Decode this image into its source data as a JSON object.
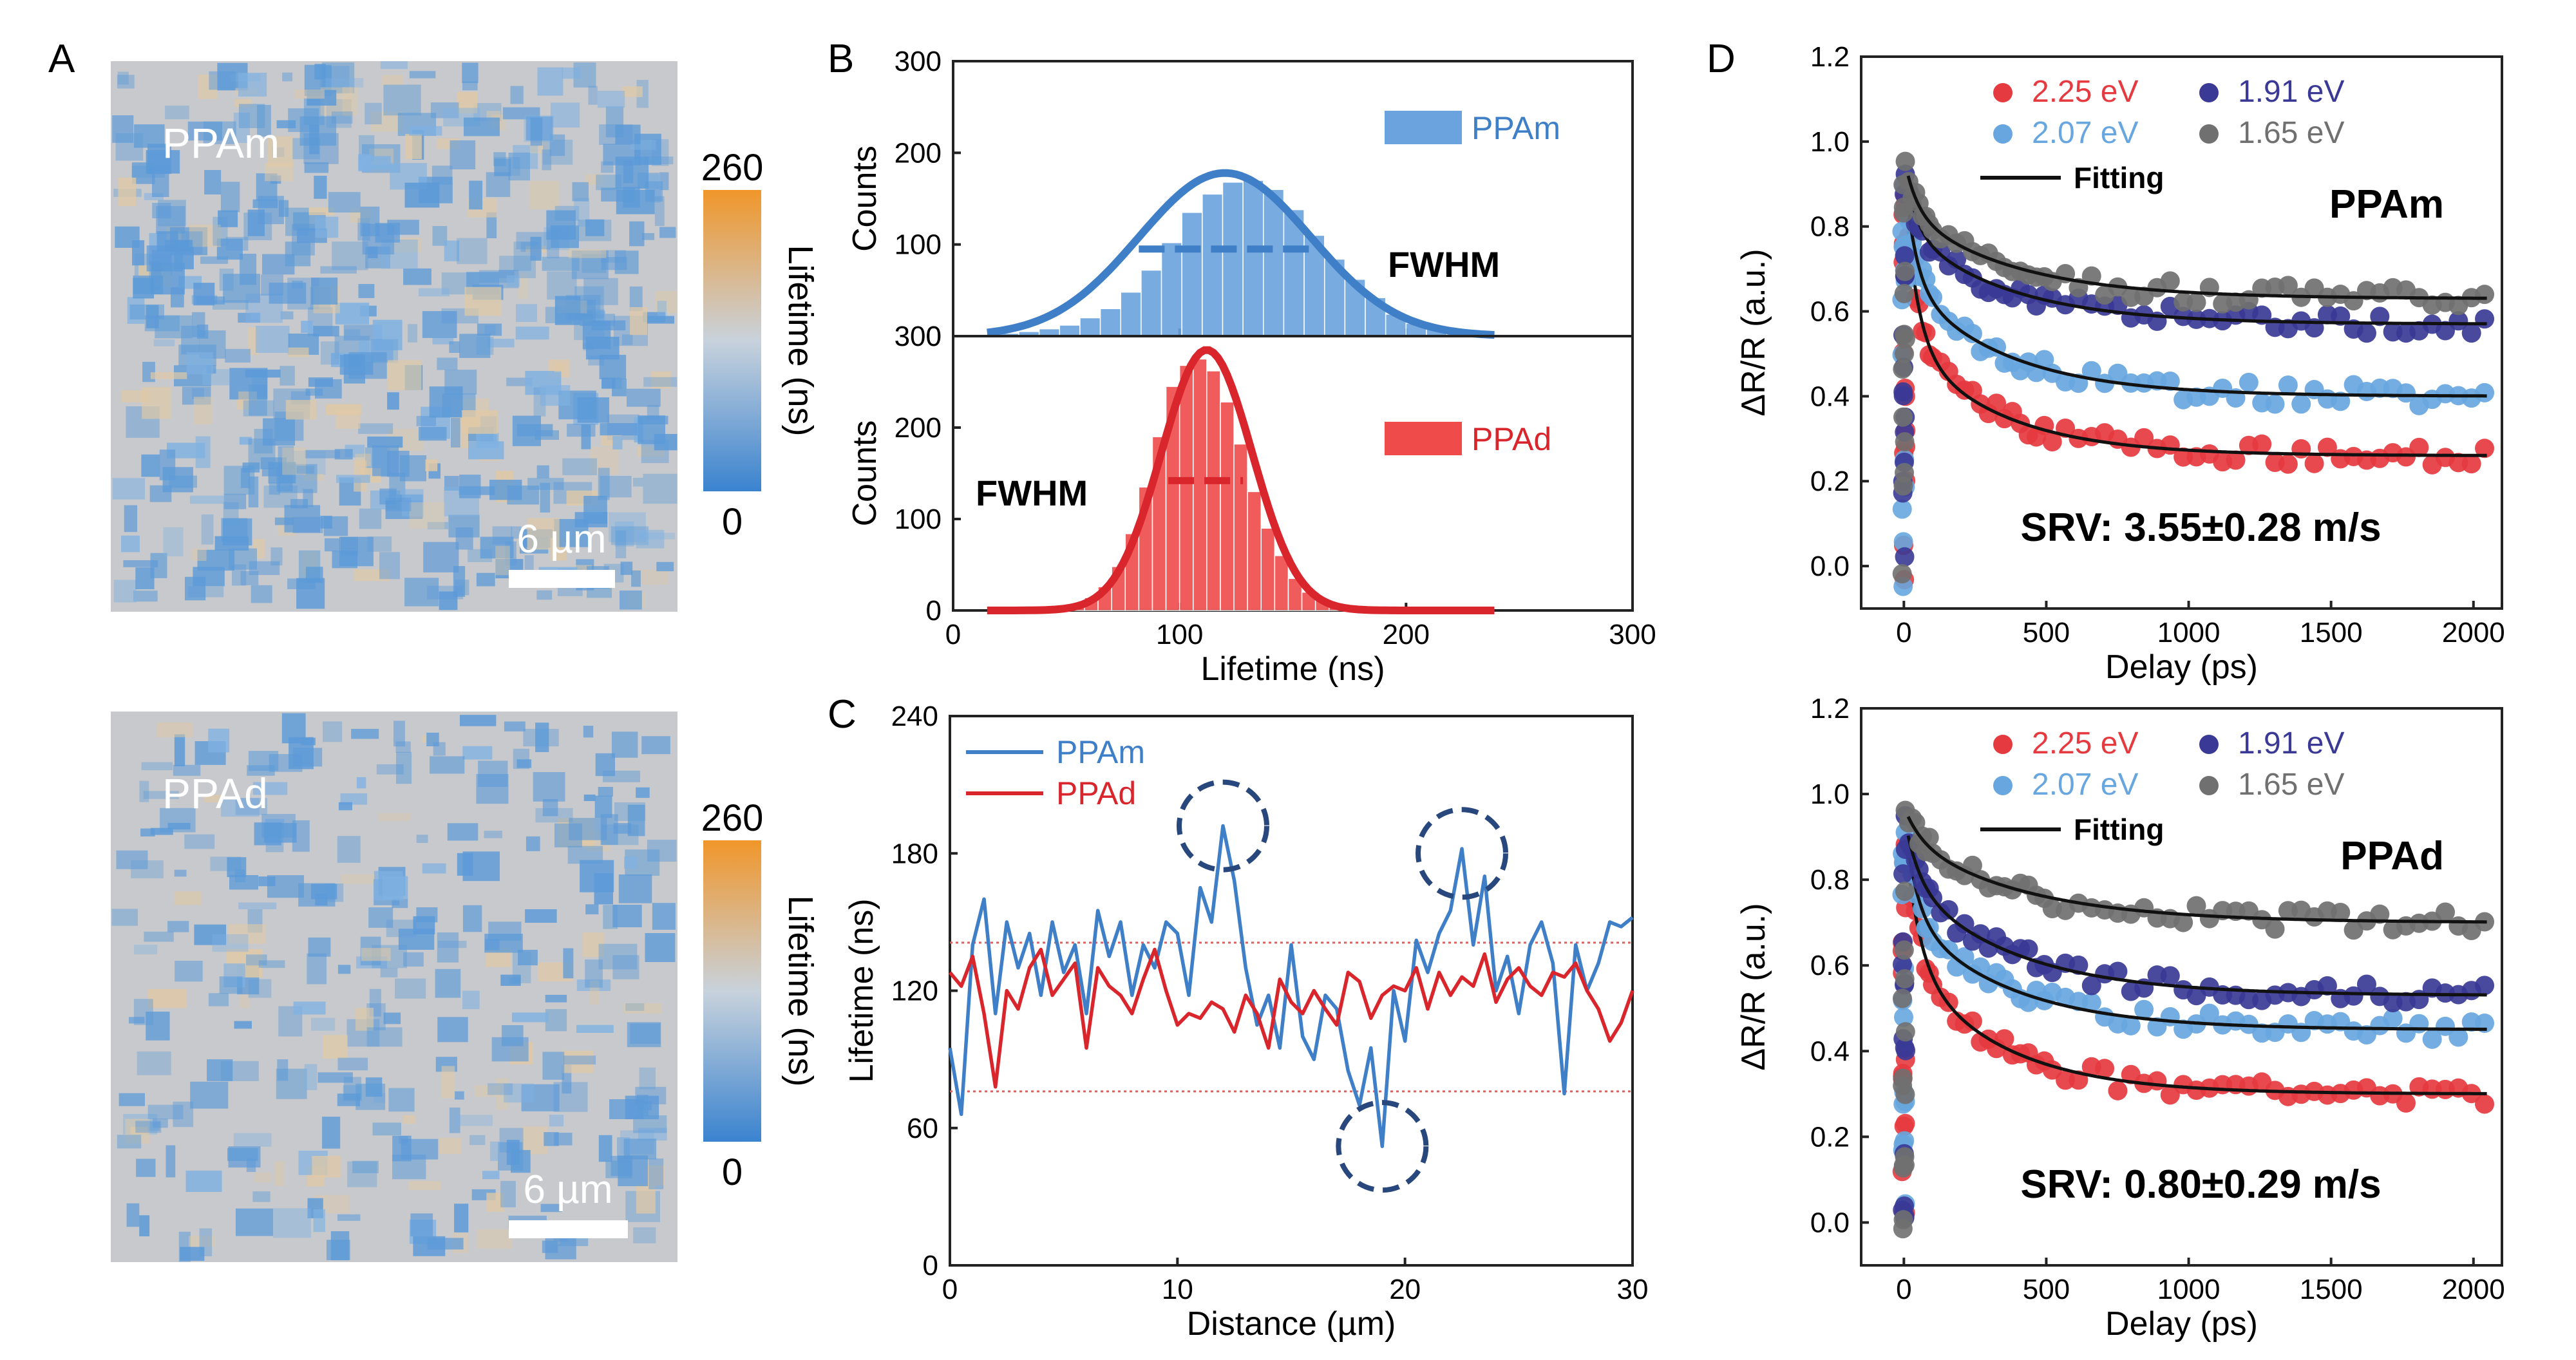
{
  "colors": {
    "blue": "#3f7fc7",
    "red": "#d9262c",
    "hist_blue": "#6aa3dd",
    "hist_red": "#ef4b4b",
    "navy": "#3a4bb0",
    "light_blue": "#67a6de",
    "gray": "#6f6f6f",
    "dark_circle": "#27477d",
    "map_base": "#c7c9cc",
    "colorbar_top": "#f0962a",
    "colorbar_mid": "#c8d2dc",
    "colorbar_bottom": "#3a83cf"
  },
  "panel_letters": {
    "a": "A",
    "b": "B",
    "c": "C",
    "d": "D"
  },
  "panel_a": {
    "maps": [
      {
        "label": "PPAm",
        "scalebar": "6 µm",
        "cbar_max": "260",
        "cbar_min": "0",
        "cbar_title": "Lifetime (ns)",
        "density": 0.62
      },
      {
        "label": "PPAd",
        "scalebar": "6 µm",
        "cbar_max": "260",
        "cbar_min": "0",
        "cbar_title": "Lifetime (ns)",
        "density": 0.36
      }
    ]
  },
  "chart_data": [
    {
      "id": "B-top",
      "type": "bar",
      "xlim": [
        0,
        300
      ],
      "ylim": [
        0,
        300
      ],
      "yticks": [
        0,
        100,
        200,
        300
      ],
      "ylabel": "Counts",
      "legend": "PPAm",
      "annotation": "FWHM",
      "bin_width": 9,
      "bins": [
        20,
        29,
        38,
        47,
        56,
        65,
        74,
        83,
        92,
        101,
        110,
        119,
        128,
        137,
        146,
        155,
        164,
        173,
        182,
        191,
        200,
        209,
        218,
        227
      ],
      "values": [
        3,
        5,
        8,
        12,
        20,
        30,
        48,
        72,
        102,
        135,
        155,
        168,
        170,
        160,
        138,
        110,
        84,
        62,
        42,
        24,
        14,
        8,
        4,
        2
      ],
      "fit": {
        "center": 120,
        "amplitude": 178,
        "sigma": 38
      },
      "fwhm_segment": [
        82,
        160,
        95
      ]
    },
    {
      "id": "B-bottom",
      "type": "bar",
      "xlim": [
        0,
        300
      ],
      "xticks": [
        0,
        100,
        200,
        300
      ],
      "ylim": [
        0,
        300
      ],
      "yticks": [
        0,
        100,
        200,
        300
      ],
      "ylabel": "Counts",
      "xlabel": "Lifetime (ns)",
      "legend": "PPAd",
      "annotation": "FWHM",
      "bin_width": 6,
      "bins": [
        40,
        46,
        52,
        58,
        64,
        70,
        76,
        82,
        88,
        94,
        100,
        106,
        112,
        118,
        124,
        130,
        136,
        142,
        148,
        154,
        160,
        166,
        172,
        178
      ],
      "values": [
        2,
        4,
        7,
        14,
        26,
        48,
        84,
        135,
        190,
        245,
        268,
        275,
        262,
        228,
        182,
        130,
        90,
        60,
        35,
        20,
        12,
        6,
        3,
        1
      ],
      "fit": {
        "center": 112,
        "amplitude": 285,
        "sigma": 20
      },
      "fwhm_segment": [
        95,
        128,
        142
      ]
    },
    {
      "id": "C",
      "type": "line",
      "xlim": [
        0,
        30
      ],
      "xticks": [
        0,
        10,
        20,
        30
      ],
      "ylim": [
        0,
        240
      ],
      "yticks": [
        0,
        60,
        120,
        180,
        240
      ],
      "xlabel": "Distance (µm)",
      "ylabel": "Lifetime (ns)",
      "reference_lines": [
        141,
        76
      ],
      "highlight_circles": [
        [
          12.0,
          192
        ],
        [
          22.5,
          180
        ],
        [
          19.0,
          52
        ]
      ],
      "series": [
        {
          "name": "PPAm",
          "x": [
            0,
            0.5,
            1,
            1.5,
            2,
            2.5,
            3,
            3.5,
            4,
            4.5,
            5,
            5.5,
            6,
            6.5,
            7,
            7.5,
            8,
            8.5,
            9,
            9.5,
            10,
            10.5,
            11,
            11.5,
            12,
            12.5,
            13,
            13.5,
            14,
            14.5,
            15,
            15.5,
            16,
            16.5,
            17,
            17.5,
            18,
            18.5,
            19,
            19.5,
            20,
            20.5,
            21,
            21.5,
            22,
            22.5,
            23,
            23.5,
            24,
            24.5,
            25,
            25.5,
            26,
            26.5,
            27,
            27.5,
            28,
            28.5,
            29,
            29.5,
            30
          ],
          "y": [
            95,
            66,
            140,
            160,
            110,
            150,
            130,
            145,
            118,
            150,
            128,
            140,
            110,
            155,
            135,
            150,
            118,
            140,
            130,
            150,
            145,
            118,
            165,
            150,
            192,
            168,
            130,
            105,
            118,
            95,
            140,
            100,
            90,
            118,
            112,
            85,
            70,
            95,
            52,
            120,
            98,
            142,
            128,
            145,
            155,
            182,
            140,
            170,
            120,
            135,
            110,
            140,
            150,
            132,
            75,
            140,
            120,
            132,
            150,
            148,
            152
          ]
        },
        {
          "name": "PPAd",
          "x": [
            0,
            0.5,
            1,
            1.5,
            2,
            2.5,
            3,
            3.5,
            4,
            4.5,
            5,
            5.5,
            6,
            6.5,
            7,
            7.5,
            8,
            8.5,
            9,
            9.5,
            10,
            10.5,
            11,
            11.5,
            12,
            12.5,
            13,
            13.5,
            14,
            14.5,
            15,
            15.5,
            16,
            16.5,
            17,
            17.5,
            18,
            18.5,
            19,
            19.5,
            20,
            20.5,
            21,
            21.5,
            22,
            22.5,
            23,
            23.5,
            24,
            24.5,
            25,
            25.5,
            26,
            26.5,
            27,
            27.5,
            28,
            28.5,
            29,
            29.5,
            30
          ],
          "y": [
            128,
            122,
            135,
            110,
            78,
            120,
            112,
            130,
            138,
            118,
            125,
            132,
            95,
            130,
            122,
            118,
            110,
            125,
            138,
            120,
            105,
            110,
            108,
            115,
            112,
            102,
            118,
            110,
            95,
            125,
            115,
            110,
            120,
            112,
            105,
            128,
            124,
            108,
            118,
            122,
            120,
            130,
            112,
            128,
            118,
            126,
            122,
            136,
            115,
            125,
            130,
            122,
            118,
            128,
            126,
            132,
            120,
            112,
            98,
            106,
            120
          ]
        }
      ]
    },
    {
      "id": "D-top",
      "type": "scatter",
      "xlim": [
        -150,
        2100
      ],
      "xticks": [
        0,
        500,
        1000,
        1500,
        2000
      ],
      "ylim": [
        -0.1,
        1.2
      ],
      "yticks": [
        0.0,
        0.2,
        0.4,
        0.6,
        0.8,
        1.0,
        1.2
      ],
      "xlabel": "Delay (ps)",
      "ylabel": "ΔR/R (a.u.)",
      "title": "PPAm",
      "annotation": "SRV: 3.55±0.28 m/s",
      "fit_label": "Fitting",
      "series": [
        {
          "name": "2.25 eV",
          "color": "#e53a3f",
          "plateau": 0.26,
          "fast": 0.42,
          "slow": 0.3,
          "tau1": 45,
          "tau2": 330
        },
        {
          "name": "2.07 eV",
          "color": "#67a6de",
          "plateau": 0.4,
          "fast": 0.3,
          "slow": 0.3,
          "tau1": 40,
          "tau2": 350
        },
        {
          "name": "1.91 eV",
          "color": "#3a3a96",
          "plateau": 0.57,
          "fast": 0.18,
          "slow": 0.25,
          "tau1": 40,
          "tau2": 360
        },
        {
          "name": "1.65 eV",
          "color": "#707070",
          "plateau": 0.63,
          "fast": 0.14,
          "slow": 0.23,
          "tau1": 45,
          "tau2": 380
        }
      ]
    },
    {
      "id": "D-bottom",
      "type": "scatter",
      "xlim": [
        -150,
        2100
      ],
      "xticks": [
        0,
        500,
        1000,
        1500,
        2000
      ],
      "ylim": [
        -0.1,
        1.2
      ],
      "yticks": [
        0.0,
        0.2,
        0.4,
        0.6,
        0.8,
        1.0,
        1.2
      ],
      "xlabel": "Delay (ps)",
      "ylabel": "ΔR/R (a.u.)",
      "title": "PPAd",
      "annotation": "SRV: 0.80±0.29 m/s",
      "fit_label": "Fitting",
      "series": [
        {
          "name": "2.25 eV",
          "color": "#e53a3f",
          "plateau": 0.3,
          "fast": 0.35,
          "slow": 0.35,
          "tau1": 50,
          "tau2": 330
        },
        {
          "name": "2.07 eV",
          "color": "#67a6de",
          "plateau": 0.45,
          "fast": 0.25,
          "slow": 0.3,
          "tau1": 45,
          "tau2": 360
        },
        {
          "name": "1.91 eV",
          "color": "#3a3a96",
          "plateau": 0.53,
          "fast": 0.17,
          "slow": 0.3,
          "tau1": 50,
          "tau2": 380
        },
        {
          "name": "1.65 eV",
          "color": "#707070",
          "plateau": 0.7,
          "fast": 0.08,
          "slow": 0.22,
          "tau1": 60,
          "tau2": 420
        }
      ]
    }
  ]
}
